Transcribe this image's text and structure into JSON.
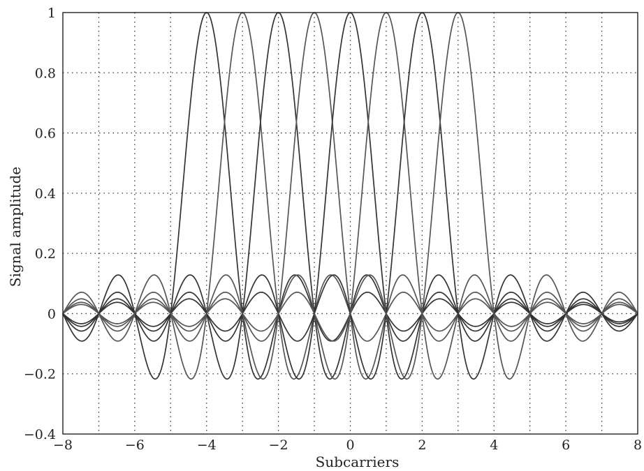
{
  "chart_data": {
    "type": "line",
    "title": "",
    "xlabel": "Subcarriers",
    "ylabel": "Signal amplitude",
    "xlim": [
      -8,
      8
    ],
    "ylim": [
      -0.4,
      1
    ],
    "grid": true,
    "legend": "none",
    "x_ticks": [
      "−8",
      "−6",
      "−4",
      "−2",
      "0",
      "2",
      "4",
      "6",
      "8"
    ],
    "x_tick_values": [
      -8,
      -6,
      -4,
      -2,
      0,
      2,
      4,
      6,
      8
    ],
    "y_ticks": [
      "1",
      "0.8",
      "0.6",
      "0.4",
      "0.2",
      "0",
      "−0.2",
      "−0.4"
    ],
    "y_tick_values": [
      1,
      0.8,
      0.6,
      0.4,
      0.2,
      0,
      -0.2,
      -0.4
    ],
    "x_gridlines": [
      -8,
      -7,
      -6,
      -5,
      -4,
      -3,
      -2,
      -1,
      0,
      1,
      2,
      3,
      4,
      5,
      6,
      7,
      8
    ],
    "y_gridlines": [
      -0.4,
      -0.2,
      0,
      0.2,
      0.4,
      0.6,
      0.8,
      1
    ],
    "series_function": "sinc",
    "series": [
      {
        "center": -4,
        "peak": 1,
        "color": "#333333"
      },
      {
        "center": -3,
        "peak": 1,
        "color": "#555555"
      },
      {
        "center": -2,
        "peak": 1,
        "color": "#333333"
      },
      {
        "center": -1,
        "peak": 1,
        "color": "#555555"
      },
      {
        "center": 0,
        "peak": 1,
        "color": "#333333"
      },
      {
        "center": 1,
        "peak": 1,
        "color": "#555555"
      },
      {
        "center": 2,
        "peak": 1,
        "color": "#333333"
      },
      {
        "center": 3,
        "peak": 1,
        "color": "#555555"
      }
    ]
  }
}
